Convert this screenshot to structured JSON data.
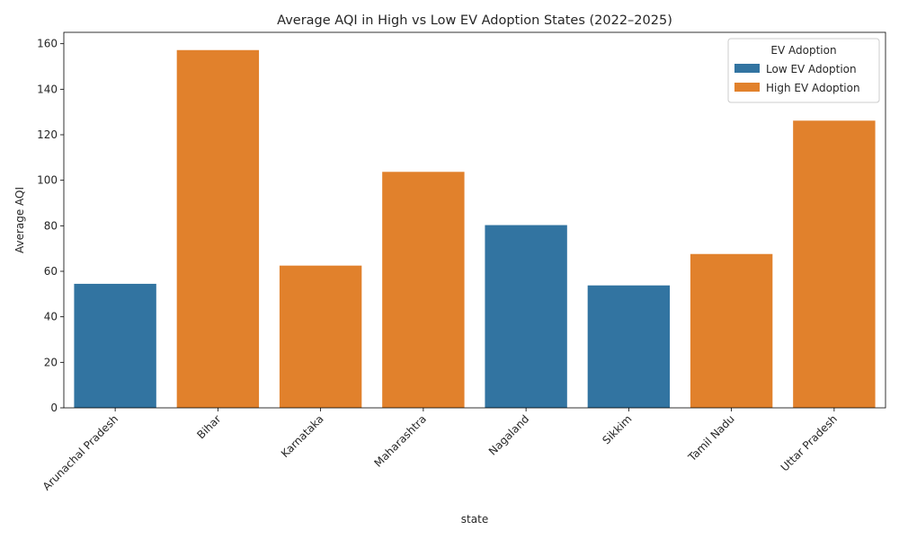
{
  "colors": {
    "low": "#3274a1",
    "high": "#e1812c"
  },
  "chart_data": {
    "type": "bar",
    "title": "Average AQI in High vs Low EV Adoption States (2022–2025)",
    "xlabel": "state",
    "ylabel": "Average AQI",
    "ylim": [
      0,
      165
    ],
    "yticks": [
      0,
      20,
      40,
      60,
      80,
      100,
      120,
      140,
      160
    ],
    "categories": [
      "Arunachal Pradesh",
      "Bihar",
      "Karnataka",
      "Maharashtra",
      "Nagaland",
      "Sikkim",
      "Tamil Nadu",
      "Uttar Pradesh"
    ],
    "values": [
      54.5,
      157.2,
      62.5,
      103.7,
      80.3,
      53.8,
      67.6,
      126.2
    ],
    "groups": [
      "low",
      "high",
      "high",
      "high",
      "low",
      "low",
      "high",
      "high"
    ],
    "legend": {
      "title": "EV Adoption",
      "placement": "top-right",
      "entries": [
        {
          "key": "low",
          "label": "Low EV Adoption"
        },
        {
          "key": "high",
          "label": "High EV Adoption"
        }
      ]
    },
    "grid": false
  }
}
